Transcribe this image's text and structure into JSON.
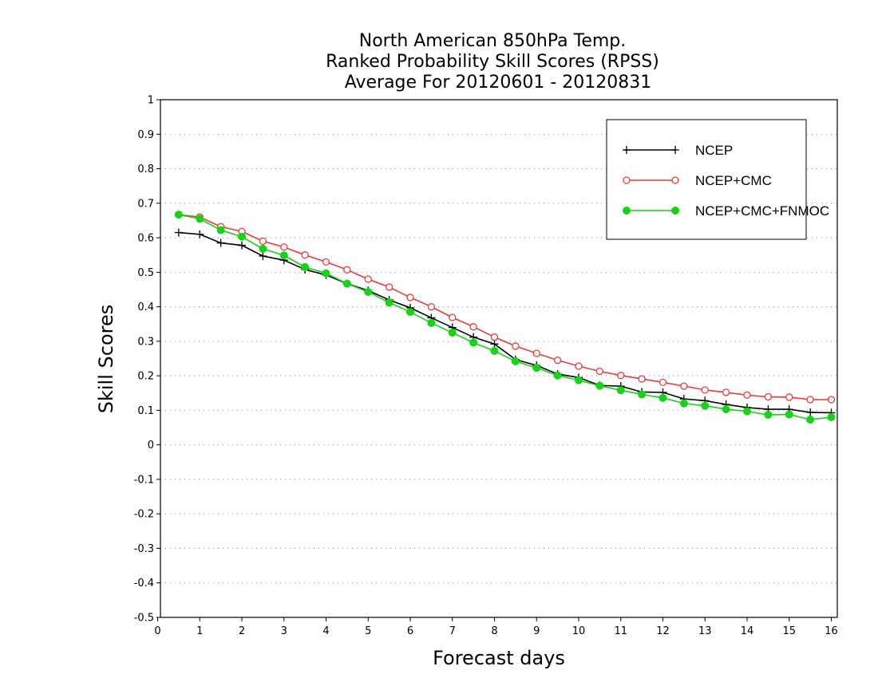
{
  "chart_data": {
    "type": "line",
    "title": [
      "North American 850hPa Temp.",
      "Ranked Probability Skill Scores (RPSS)",
      "Average For 20120601 - 20120831"
    ],
    "xlabel": "Forecast days",
    "ylabel": "Skill Scores",
    "xlim": [
      0,
      16.1
    ],
    "ylim": [
      -0.5,
      1
    ],
    "xticks": [
      "0",
      "1",
      "2",
      "3",
      "4",
      "5",
      "6",
      "7",
      "8",
      "9",
      "10",
      "11",
      "12",
      "13",
      "14",
      "15",
      "16"
    ],
    "yticks": [
      "-0.5",
      "-0.4",
      "-0.3",
      "-0.2",
      "-0.1",
      "0",
      "0.1",
      "0.2",
      "0.3",
      "0.4",
      "0.5",
      "0.6",
      "0.7",
      "0.8",
      "0.9",
      "1"
    ],
    "grid": "horizontal-dotted",
    "legend_position": "top-right",
    "x": [
      0.5,
      1,
      1.5,
      2,
      2.5,
      3,
      3.5,
      4,
      4.5,
      5,
      5.5,
      6,
      6.5,
      7,
      7.5,
      8,
      8.5,
      9,
      9.5,
      10,
      10.5,
      11,
      11.5,
      12,
      12.5,
      13,
      13.5,
      14,
      14.5,
      15,
      15.5,
      16
    ],
    "series": [
      {
        "name": "NCEP",
        "color": "#000000",
        "marker": "plus",
        "values": [
          0.615,
          0.61,
          0.585,
          0.578,
          0.547,
          0.535,
          0.508,
          0.492,
          0.467,
          0.447,
          0.42,
          0.397,
          0.368,
          0.34,
          0.312,
          0.292,
          0.247,
          0.23,
          0.205,
          0.195,
          0.172,
          0.17,
          0.153,
          0.152,
          0.133,
          0.128,
          0.117,
          0.108,
          0.103,
          0.103,
          0.094,
          0.093
        ]
      },
      {
        "name": "NCEP+CMC",
        "color": "#e83a3a",
        "marker": "open-circle",
        "values": [
          0.667,
          0.66,
          0.632,
          0.618,
          0.59,
          0.573,
          0.55,
          0.53,
          0.507,
          0.48,
          0.457,
          0.427,
          0.4,
          0.369,
          0.342,
          0.312,
          0.286,
          0.265,
          0.245,
          0.228,
          0.213,
          0.201,
          0.191,
          0.181,
          0.17,
          0.159,
          0.152,
          0.144,
          0.139,
          0.138,
          0.131,
          0.131
        ]
      },
      {
        "name": "NCEP+CMC+FNMOC",
        "color": "#14d414",
        "marker": "filled-circle",
        "values": [
          0.667,
          0.655,
          0.622,
          0.603,
          0.568,
          0.549,
          0.515,
          0.497,
          0.467,
          0.443,
          0.412,
          0.385,
          0.353,
          0.325,
          0.296,
          0.272,
          0.242,
          0.223,
          0.201,
          0.187,
          0.171,
          0.158,
          0.146,
          0.136,
          0.12,
          0.113,
          0.103,
          0.097,
          0.087,
          0.088,
          0.073,
          0.08
        ]
      }
    ]
  }
}
